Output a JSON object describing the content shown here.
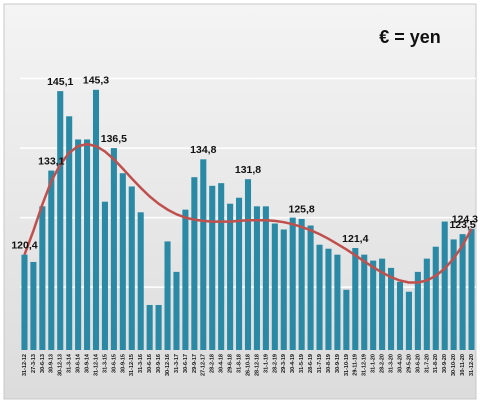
{
  "chart_data": {
    "type": "bar",
    "title": "€ = yen",
    "categories": [
      "31-12-12",
      "27-3-13",
      "30-6-13",
      "30-9-13",
      "30-12-13",
      "31-3-14",
      "30-6-14",
      "30-9-14",
      "31-12-14",
      "31-3-15",
      "30-6-15",
      "30-9-15",
      "31-12-15",
      "31-3-16",
      "30-6-16",
      "30-9-16",
      "30-12-16",
      "31-3-17",
      "30-6-17",
      "29-9-17",
      "27-12-17",
      "28-2-18",
      "30-4-18",
      "29-6-18",
      "31-8-18",
      "26-10-18",
      "28-12-18",
      "31-1-19",
      "28-2-19",
      "29-3-19",
      "30-4-19",
      "31-5-19",
      "28-6-19",
      "31-7-19",
      "30-8-19",
      "30-9-19",
      "31-10-19",
      "29-11-19",
      "31-12-19",
      "31-1-20",
      "28-2-20",
      "31-3-20",
      "30-4-20",
      "29-5-20",
      "30-6-20",
      "31-7-20",
      "31-8-20",
      "30-9-20",
      "30-10-20",
      "30-11-20",
      "31-12-20"
    ],
    "values": [
      120.4,
      119.3,
      127.7,
      133.1,
      145.1,
      141.3,
      137.8,
      137.8,
      145.3,
      128.4,
      136.5,
      132.7,
      130.7,
      126.8,
      112.8,
      112.8,
      122.4,
      117.8,
      127.2,
      132.1,
      134.8,
      130.8,
      131.2,
      128.1,
      129,
      131.8,
      127.7,
      127.7,
      125.1,
      124.2,
      126,
      125.8,
      124.8,
      121.9,
      121.3,
      120.4,
      115.1,
      121.4,
      120.4,
      119.5,
      119.8,
      118.4,
      116.3,
      114.8,
      117.8,
      119.8,
      121.6,
      125.4,
      122.7,
      123.5,
      124.3
    ],
    "value_labels": [
      "120,4",
      null,
      null,
      "133,1",
      "145,1",
      null,
      null,
      null,
      "145,3",
      null,
      "136,5",
      null,
      null,
      null,
      null,
      null,
      null,
      null,
      null,
      null,
      "134,8",
      null,
      null,
      null,
      null,
      "131,8",
      null,
      null,
      null,
      null,
      null,
      "125,8",
      null,
      null,
      null,
      null,
      null,
      "121,4",
      null,
      null,
      null,
      null,
      null,
      null,
      null,
      null,
      null,
      null,
      null,
      "123,5",
      "124,3"
    ],
    "color": "#2a8aa6",
    "trend": {
      "color": "#c0504d",
      "values": [
        120.4,
        124,
        128,
        131.5,
        134,
        135.8,
        136.8,
        137.1,
        136.8,
        136,
        134.8,
        133.4,
        131.9,
        130.5,
        129.2,
        128.1,
        127.2,
        126.5,
        126,
        125.7,
        125.5,
        125.4,
        125.4,
        125.4,
        125.5,
        125.6,
        125.6,
        125.6,
        125.5,
        125.3,
        125,
        124.6,
        124.1,
        123.5,
        122.8,
        122,
        121.2,
        120.3,
        119.4,
        118.5,
        117.7,
        117,
        116.5,
        116.2,
        116.2,
        116.5,
        117.2,
        118.3,
        119.8,
        121.8,
        124.3
      ]
    },
    "ylim": [
      106,
      149.5
    ],
    "yticks": [
      115.5,
      126,
      136.5,
      147
    ],
    "grid": true
  }
}
